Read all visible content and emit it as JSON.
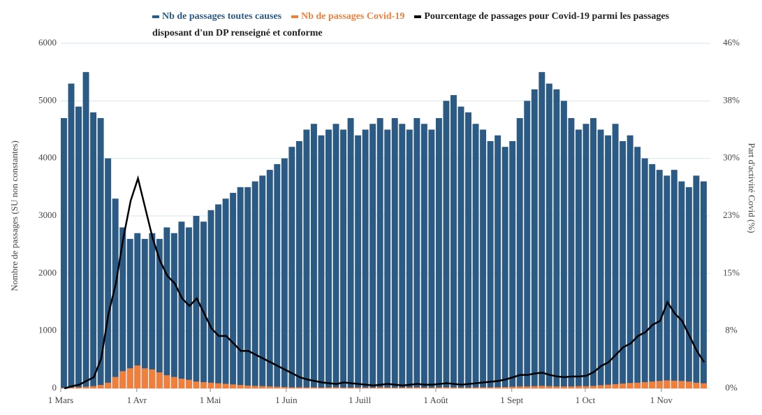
{
  "chart_data": {
    "type": "bar-line",
    "y_label": "Nombre de passages (SU non constantes)",
    "y2_label": "Part d'activité Covid (%)",
    "x": [
      0,
      3,
      6,
      9,
      12,
      15,
      18,
      21,
      24,
      27,
      30,
      33,
      36,
      39,
      42,
      45,
      48,
      51,
      54,
      57,
      60,
      63,
      66,
      69,
      72,
      75,
      78,
      81,
      84,
      87,
      90,
      93,
      96,
      99,
      102,
      105,
      108,
      111,
      114,
      117,
      120,
      123,
      126,
      129,
      132,
      135,
      138,
      141,
      144,
      147,
      150,
      153,
      156,
      159,
      162,
      165,
      168,
      171,
      174,
      177,
      180,
      183,
      186,
      189,
      192,
      195,
      198,
      201,
      204,
      207,
      210,
      213,
      216,
      219,
      222,
      225,
      228,
      231,
      234,
      237,
      240,
      243,
      246,
      249,
      252,
      255,
      258,
      261
    ],
    "xlim": [
      0,
      265
    ],
    "xticks": [
      {
        "value": 0,
        "label": "1 Mars"
      },
      {
        "value": 31,
        "label": "1 Avr"
      },
      {
        "value": 61,
        "label": "1 Mai"
      },
      {
        "value": 92,
        "label": "1 Juin"
      },
      {
        "value": 122,
        "label": "1 Juill"
      },
      {
        "value": 153,
        "label": "1 Août"
      },
      {
        "value": 184,
        "label": "1 Sept"
      },
      {
        "value": 214,
        "label": "1 Oct"
      },
      {
        "value": 245,
        "label": "1 Nov"
      }
    ],
    "ylim": [
      0,
      6000
    ],
    "yticks": [
      0,
      1000,
      2000,
      3000,
      4000,
      5000,
      6000
    ],
    "y2lim": [
      0,
      46
    ],
    "y2ticks": [
      {
        "value": 0,
        "label": "0%"
      },
      {
        "value": 7.67,
        "label": "8%"
      },
      {
        "value": 15.33,
        "label": "15%"
      },
      {
        "value": 23,
        "label": "23%"
      },
      {
        "value": 30.67,
        "label": "30%"
      },
      {
        "value": 38.33,
        "label": "38%"
      },
      {
        "value": 46,
        "label": "46%"
      }
    ],
    "grid": true,
    "series": [
      {
        "name": "Nb de passages toutes causes",
        "color": "#2b5a85",
        "kind": "bar",
        "values": [
          4700,
          5300,
          4900,
          5500,
          4800,
          4700,
          4000,
          3300,
          2800,
          2600,
          2700,
          2600,
          2700,
          2600,
          2800,
          2700,
          2900,
          2800,
          3000,
          2900,
          3100,
          3200,
          3300,
          3400,
          3500,
          3500,
          3600,
          3700,
          3800,
          3900,
          4000,
          4200,
          4300,
          4500,
          4600,
          4400,
          4500,
          4600,
          4500,
          4700,
          4400,
          4500,
          4600,
          4700,
          4500,
          4700,
          4600,
          4500,
          4700,
          4600,
          4500,
          4700,
          5000,
          5100,
          4900,
          4800,
          4600,
          4500,
          4300,
          4400,
          4200,
          4300,
          4700,
          5000,
          5200,
          5500,
          5300,
          5200,
          5000,
          4700,
          4500,
          4600,
          4700,
          4500,
          4400,
          4600,
          4300,
          4400,
          4200,
          4000,
          3900,
          3800,
          3700,
          3800,
          3600,
          3500,
          3700,
          3600
        ]
      },
      {
        "name": "Nb de passages Covid-19",
        "color": "#f07f3c",
        "kind": "bar",
        "values": [
          10,
          15,
          20,
          30,
          40,
          60,
          100,
          200,
          300,
          350,
          400,
          350,
          330,
          280,
          230,
          200,
          170,
          150,
          120,
          110,
          100,
          90,
          80,
          70,
          60,
          50,
          45,
          40,
          35,
          30,
          25,
          20,
          20,
          18,
          20,
          15,
          18,
          20,
          15,
          15,
          18,
          15,
          15,
          20,
          18,
          15,
          15,
          18,
          20,
          15,
          15,
          18,
          20,
          18,
          15,
          15,
          18,
          20,
          20,
          22,
          25,
          30,
          35,
          35,
          40,
          45,
          40,
          35,
          35,
          35,
          40,
          40,
          45,
          55,
          65,
          75,
          85,
          95,
          100,
          110,
          120,
          130,
          140,
          135,
          130,
          120,
          100,
          90
        ]
      },
      {
        "name": "Pourcentage de passages pour Covid-19 parmi les passages disposant d'un DP renseigné et conforme",
        "color": "#000000",
        "kind": "line",
        "axis": "y2",
        "values": [
          0,
          0.3,
          0.5,
          1,
          1.5,
          4,
          10,
          14,
          20,
          25,
          28,
          24,
          20,
          17,
          15,
          14,
          12,
          11,
          12,
          10,
          8,
          7,
          7,
          6,
          5,
          5,
          4.5,
          4,
          3.5,
          3,
          2.5,
          2,
          1.5,
          1.2,
          1,
          0.8,
          0.7,
          0.6,
          0.8,
          0.7,
          0.6,
          0.5,
          0.4,
          0.5,
          0.6,
          0.5,
          0.4,
          0.5,
          0.6,
          0.5,
          0.5,
          0.6,
          0.7,
          0.6,
          0.5,
          0.6,
          0.7,
          0.8,
          0.9,
          1,
          1.2,
          1.5,
          1.8,
          1.8,
          2,
          2.1,
          1.8,
          1.6,
          1.5,
          1.6,
          1.6,
          1.7,
          2.2,
          3,
          3.5,
          4.5,
          5.5,
          6,
          7,
          7.5,
          8.5,
          9,
          11.5,
          10,
          9,
          7,
          5,
          3.5
        ]
      }
    ]
  }
}
